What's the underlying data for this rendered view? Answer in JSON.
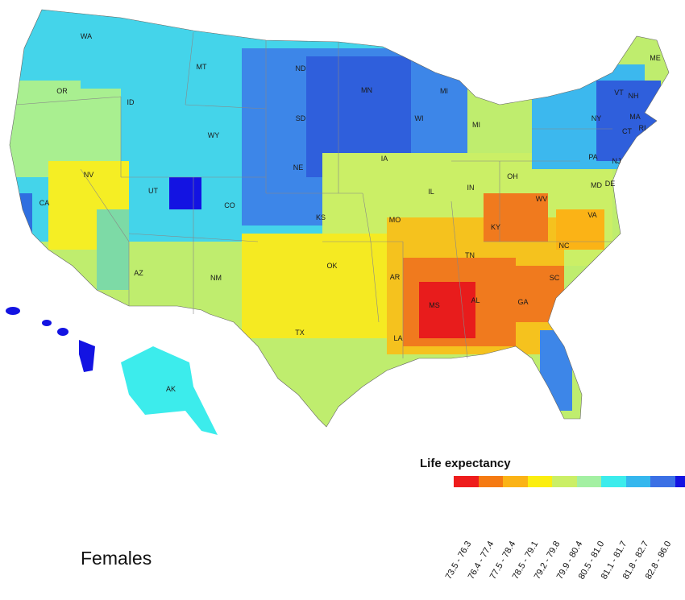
{
  "legend": {
    "title": "Life expectancy",
    "bins": [
      {
        "label": "73.5 - 76.3",
        "color": "#ee1c1c"
      },
      {
        "label": "76.4 - 77.4",
        "color": "#f57a12"
      },
      {
        "label": "77.5 - 78.4",
        "color": "#fbb316"
      },
      {
        "label": "78.5 - 79.1",
        "color": "#fbee10"
      },
      {
        "label": "79.2 - 79.8",
        "color": "#cbef66"
      },
      {
        "label": "79.9 - 80.4",
        "color": "#a3f0a2"
      },
      {
        "label": "80.5 - 81.0",
        "color": "#3cecec"
      },
      {
        "label": "81.1 - 81.7",
        "color": "#35b7ee"
      },
      {
        "label": "81.8 - 82.7",
        "color": "#3b70e5"
      },
      {
        "label": "82.8 - 86.0",
        "color": "#1313e2"
      }
    ]
  },
  "caption": "Females",
  "state_labels": [
    "WA",
    "MT",
    "ND",
    "ME",
    "OR",
    "ID",
    "MN",
    "MI",
    "VT",
    "NH",
    "SD",
    "WY",
    "WI",
    "NY",
    "MA",
    "MI",
    "CT",
    "RI",
    "NV",
    "NE",
    "IA",
    "PA",
    "NJ",
    "OH",
    "UT",
    "IL",
    "IN",
    "MD",
    "DE",
    "CA",
    "CO",
    "WV",
    "KS",
    "MO",
    "VA",
    "KY",
    "OK",
    "TN",
    "NC",
    "AZ",
    "NM",
    "AR",
    "SC",
    "MS",
    "AL",
    "GA",
    "TX",
    "LA",
    "AK"
  ]
}
